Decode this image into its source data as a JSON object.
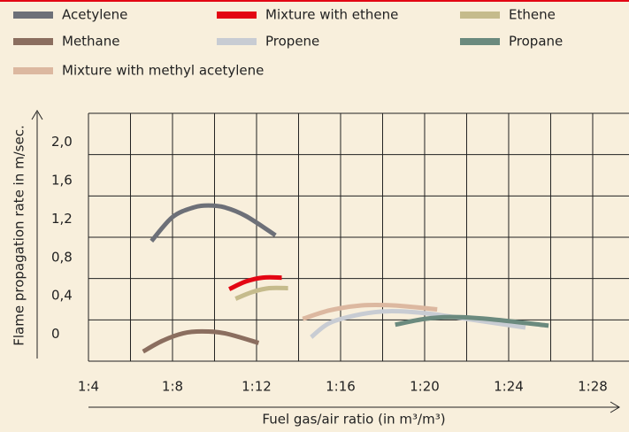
{
  "chart_data": {
    "type": "line",
    "xlabel": "Fuel gas/air ratio (in m³/m³)",
    "ylabel": "Flame propagation rate in m/sec.",
    "xlim": [
      4,
      29.5
    ],
    "ylim": [
      -0.28,
      2.3
    ],
    "xticks": [
      {
        "value": 4,
        "label": "1:4"
      },
      {
        "value": 8,
        "label": "1:8"
      },
      {
        "value": 12,
        "label": "1:12"
      },
      {
        "value": 16,
        "label": "1:16"
      },
      {
        "value": 20,
        "label": "1:20"
      },
      {
        "value": 24,
        "label": "1:24"
      },
      {
        "value": 28,
        "label": "1:28"
      }
    ],
    "yticks": [
      0,
      {
        "value": 0.4,
        "label": "0,4"
      },
      {
        "value": 0.8,
        "label": "0,8"
      },
      {
        "value": 1.2,
        "label": "1,2"
      },
      {
        "value": 1.6,
        "label": "1,6"
      },
      {
        "value": 2.0,
        "label": "2,0"
      }
    ],
    "grid": true,
    "series": [
      {
        "name": "Acetylene",
        "color": "#6d7078",
        "x": [
          7,
          8,
          9,
          9.7,
          10.5,
          11.5,
          12.9
        ],
        "values": [
          0.97,
          1.22,
          1.32,
          1.34,
          1.32,
          1.23,
          1.03
        ]
      },
      {
        "name": "Mixture with ethene",
        "color": "#e30613",
        "x": [
          10.7,
          11.5,
          12.3,
          13.2
        ],
        "values": [
          0.47,
          0.55,
          0.59,
          0.59
        ]
      },
      {
        "name": "Ethene",
        "color": "#c5bb8c",
        "x": [
          11,
          11.8,
          12.6,
          13.5
        ],
        "values": [
          0.37,
          0.44,
          0.48,
          0.48
        ]
      },
      {
        "name": "Methane",
        "color": "#8b6e5f",
        "x": [
          6.6,
          7.5,
          8.5,
          9.4,
          10.5,
          12.1
        ],
        "values": [
          -0.18,
          -0.07,
          0.01,
          0.03,
          0.01,
          -0.09
        ]
      },
      {
        "name": "Propene",
        "color": "#c8ccd3",
        "x": [
          14.6,
          15.5,
          17,
          18.3,
          20,
          22,
          24.8
        ],
        "values": [
          -0.03,
          0.12,
          0.21,
          0.24,
          0.22,
          0.16,
          0.07
        ]
      },
      {
        "name": "Propane",
        "color": "#6b8a7e",
        "x": [
          18.6,
          20,
          21.3,
          23,
          25.9
        ],
        "values": [
          0.1,
          0.16,
          0.18,
          0.16,
          0.09
        ]
      },
      {
        "name": "Mixture with methyl acetylene",
        "color": "#dcb8a0",
        "x": [
          14.2,
          15.5,
          17,
          18.5,
          20.6
        ],
        "values": [
          0.16,
          0.25,
          0.3,
          0.3,
          0.26
        ]
      }
    ]
  }
}
